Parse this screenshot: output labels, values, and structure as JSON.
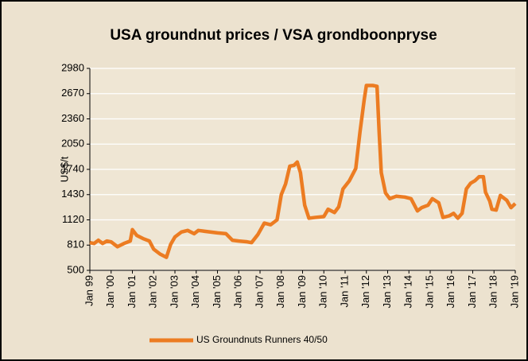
{
  "chart_data": {
    "type": "line",
    "title": "USA groundnut prices /  VSA grondboonpryse",
    "y_label": "US$/t",
    "series": [
      {
        "name": "US Groundnuts Runners 40/50",
        "color": "#ec7c22",
        "x": [
          1999.0,
          1999.2,
          1999.4,
          1999.6,
          1999.8,
          2000.0,
          2000.3,
          2000.6,
          2000.9,
          2001.0,
          2001.2,
          2001.5,
          2001.8,
          2002.0,
          2002.3,
          2002.6,
          2002.8,
          2003.0,
          2003.3,
          2003.6,
          2003.9,
          2004.1,
          2004.4,
          2004.7,
          2005.0,
          2005.4,
          2005.7,
          2006.0,
          2006.4,
          2006.6,
          2006.9,
          2007.2,
          2007.5,
          2007.8,
          2008.0,
          2008.2,
          2008.4,
          2008.6,
          2008.75,
          2008.9,
          2009.1,
          2009.3,
          2009.6,
          2010.0,
          2010.2,
          2010.5,
          2010.7,
          2010.9,
          2011.2,
          2011.5,
          2011.7,
          2011.9,
          2012.0,
          2012.3,
          2012.5,
          2012.6,
          2012.7,
          2012.9,
          2013.1,
          2013.4,
          2013.8,
          2014.1,
          2014.4,
          2014.6,
          2014.9,
          2015.1,
          2015.4,
          2015.6,
          2015.9,
          2016.1,
          2016.3,
          2016.5,
          2016.7,
          2016.9,
          2017.1,
          2017.3,
          2017.5,
          2017.6,
          2017.8,
          2017.9,
          2018.1,
          2018.3,
          2018.5,
          2018.6,
          2018.8,
          2019.0
        ],
        "values": [
          840,
          830,
          870,
          830,
          860,
          850,
          790,
          830,
          860,
          1000,
          930,
          890,
          860,
          760,
          700,
          660,
          820,
          910,
          970,
          990,
          950,
          990,
          980,
          970,
          960,
          950,
          870,
          860,
          850,
          840,
          940,
          1080,
          1060,
          1120,
          1430,
          1560,
          1780,
          1790,
          1830,
          1700,
          1300,
          1140,
          1150,
          1160,
          1250,
          1210,
          1280,
          1500,
          1600,
          1750,
          2200,
          2600,
          2770,
          2770,
          2760,
          2200,
          1700,
          1450,
          1380,
          1410,
          1400,
          1380,
          1230,
          1270,
          1300,
          1380,
          1330,
          1150,
          1170,
          1200,
          1140,
          1200,
          1500,
          1570,
          1600,
          1650,
          1650,
          1460,
          1350,
          1250,
          1240,
          1420,
          1380,
          1360,
          1270,
          1320
        ]
      }
    ],
    "xlim": [
      1999,
      2019
    ],
    "xticks": [
      {
        "value": 1999,
        "label": "Jan 99"
      },
      {
        "value": 2000,
        "label": "Jan '00"
      },
      {
        "value": 2001,
        "label": "Jan '01"
      },
      {
        "value": 2002,
        "label": "Jan '02"
      },
      {
        "value": 2003,
        "label": "Jan '03"
      },
      {
        "value": 2004,
        "label": "Jan '04"
      },
      {
        "value": 2005,
        "label": "Jan '05"
      },
      {
        "value": 2006,
        "label": "Jan '06"
      },
      {
        "value": 2007,
        "label": "Jan '07"
      },
      {
        "value": 2008,
        "label": "Jan '08"
      },
      {
        "value": 2009,
        "label": "Jan '09"
      },
      {
        "value": 2010,
        "label": "Jan '10"
      },
      {
        "value": 2011,
        "label": "Jan '11"
      },
      {
        "value": 2012,
        "label": "Jan '12"
      },
      {
        "value": 2013,
        "label": "Jan '13"
      },
      {
        "value": 2014,
        "label": "Jan '14"
      },
      {
        "value": 2015,
        "label": "Jan '15"
      },
      {
        "value": 2016,
        "label": "Jan '16"
      },
      {
        "value": 2017,
        "label": "Jan '17"
      },
      {
        "value": 2018,
        "label": "Jan '18"
      },
      {
        "value": 2019,
        "label": "Jan '19"
      }
    ],
    "ylim": [
      500,
      2980
    ],
    "yticks": [
      500,
      810,
      1120,
      1430,
      1740,
      2050,
      2360,
      2670,
      2980
    ],
    "grid": true
  }
}
